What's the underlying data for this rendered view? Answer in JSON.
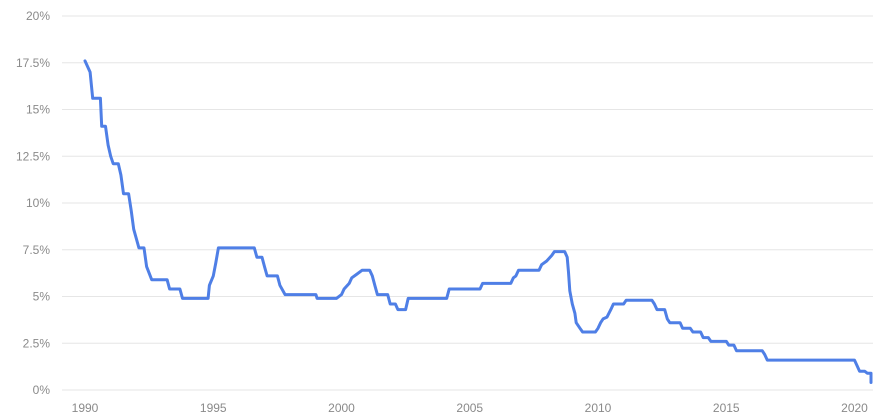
{
  "chart_data": {
    "type": "line",
    "title": "",
    "xlabel": "",
    "ylabel": "",
    "xlim": [
      1990,
      2020.3
    ],
    "ylim": [
      0,
      20
    ],
    "grid": true,
    "line_style": "step",
    "x_tick_values": [
      1990,
      1995,
      2000,
      2005,
      2010,
      2015,
      2020
    ],
    "x_tick_labels": [
      "1990",
      "1995",
      "2000",
      "2005",
      "2010",
      "2015",
      "2020"
    ],
    "y_tick_values": [
      0,
      2.5,
      5,
      7.5,
      10,
      12.5,
      15,
      17.5,
      20
    ],
    "y_tick_labels": [
      "0%",
      "2.5%",
      "5%",
      "7.5%",
      "10%",
      "12.5%",
      "15%",
      "17.5%",
      "20%"
    ],
    "series": [
      {
        "color": "#4f7fe6",
        "points": [
          [
            1990.0,
            17.6
          ],
          [
            1990.2,
            17.0
          ],
          [
            1990.3,
            15.6
          ],
          [
            1990.6,
            15.6
          ],
          [
            1990.65,
            14.1
          ],
          [
            1990.8,
            14.1
          ],
          [
            1990.9,
            13.1
          ],
          [
            1991.0,
            12.5
          ],
          [
            1991.1,
            12.1
          ],
          [
            1991.3,
            12.1
          ],
          [
            1991.4,
            11.5
          ],
          [
            1991.5,
            10.5
          ],
          [
            1991.7,
            10.5
          ],
          [
            1991.8,
            9.6
          ],
          [
            1991.9,
            8.6
          ],
          [
            1992.0,
            8.1
          ],
          [
            1992.1,
            7.6
          ],
          [
            1992.3,
            7.6
          ],
          [
            1992.4,
            6.6
          ],
          [
            1992.6,
            5.9
          ],
          [
            1993.2,
            5.9
          ],
          [
            1993.3,
            5.4
          ],
          [
            1993.7,
            5.4
          ],
          [
            1993.8,
            4.9
          ],
          [
            1994.8,
            4.9
          ],
          [
            1994.85,
            5.6
          ],
          [
            1995.0,
            6.1
          ],
          [
            1995.1,
            6.8
          ],
          [
            1995.2,
            7.6
          ],
          [
            1996.6,
            7.6
          ],
          [
            1996.7,
            7.1
          ],
          [
            1996.9,
            7.1
          ],
          [
            1997.0,
            6.6
          ],
          [
            1997.1,
            6.1
          ],
          [
            1997.5,
            6.1
          ],
          [
            1997.6,
            5.6
          ],
          [
            1997.8,
            5.1
          ],
          [
            1999.0,
            5.1
          ],
          [
            1999.05,
            4.9
          ],
          [
            1999.8,
            4.9
          ],
          [
            2000.0,
            5.1
          ],
          [
            2000.1,
            5.4
          ],
          [
            2000.3,
            5.7
          ],
          [
            2000.4,
            6.0
          ],
          [
            2000.6,
            6.2
          ],
          [
            2000.8,
            6.4
          ],
          [
            2001.1,
            6.4
          ],
          [
            2001.2,
            6.1
          ],
          [
            2001.3,
            5.6
          ],
          [
            2001.4,
            5.1
          ],
          [
            2001.8,
            5.1
          ],
          [
            2001.9,
            4.6
          ],
          [
            2002.1,
            4.6
          ],
          [
            2002.2,
            4.3
          ],
          [
            2002.5,
            4.3
          ],
          [
            2002.6,
            4.9
          ],
          [
            2004.1,
            4.9
          ],
          [
            2004.2,
            5.4
          ],
          [
            2005.4,
            5.4
          ],
          [
            2005.5,
            5.7
          ],
          [
            2006.6,
            5.7
          ],
          [
            2006.7,
            6.0
          ],
          [
            2006.8,
            6.1
          ],
          [
            2006.9,
            6.4
          ],
          [
            2007.7,
            6.4
          ],
          [
            2007.8,
            6.7
          ],
          [
            2008.0,
            6.9
          ],
          [
            2008.2,
            7.2
          ],
          [
            2008.3,
            7.4
          ],
          [
            2008.7,
            7.4
          ],
          [
            2008.8,
            7.1
          ],
          [
            2008.85,
            6.3
          ],
          [
            2008.9,
            5.3
          ],
          [
            2009.0,
            4.6
          ],
          [
            2009.1,
            4.1
          ],
          [
            2009.15,
            3.6
          ],
          [
            2009.3,
            3.3
          ],
          [
            2009.4,
            3.1
          ],
          [
            2009.9,
            3.1
          ],
          [
            2010.0,
            3.3
          ],
          [
            2010.1,
            3.6
          ],
          [
            2010.2,
            3.8
          ],
          [
            2010.35,
            3.9
          ],
          [
            2010.5,
            4.3
          ],
          [
            2010.6,
            4.6
          ],
          [
            2011.0,
            4.6
          ],
          [
            2011.1,
            4.8
          ],
          [
            2012.1,
            4.8
          ],
          [
            2012.2,
            4.6
          ],
          [
            2012.3,
            4.3
          ],
          [
            2012.6,
            4.3
          ],
          [
            2012.7,
            3.8
          ],
          [
            2012.8,
            3.6
          ],
          [
            2013.2,
            3.6
          ],
          [
            2013.3,
            3.3
          ],
          [
            2013.6,
            3.3
          ],
          [
            2013.7,
            3.1
          ],
          [
            2014.0,
            3.1
          ],
          [
            2014.1,
            2.8
          ],
          [
            2014.3,
            2.8
          ],
          [
            2014.4,
            2.6
          ],
          [
            2015.0,
            2.6
          ],
          [
            2015.1,
            2.4
          ],
          [
            2015.3,
            2.4
          ],
          [
            2015.4,
            2.1
          ],
          [
            2016.4,
            2.1
          ],
          [
            2016.5,
            1.9
          ],
          [
            2016.6,
            1.6
          ],
          [
            2020.0,
            1.6
          ],
          [
            2020.1,
            1.3
          ],
          [
            2020.2,
            1.0
          ],
          [
            2020.4,
            1.0
          ],
          [
            2020.5,
            0.9
          ],
          [
            2020.9,
            0.9
          ],
          [
            2021.0,
            0.6
          ],
          [
            2021.1,
            0.4
          ]
        ]
      }
    ]
  }
}
